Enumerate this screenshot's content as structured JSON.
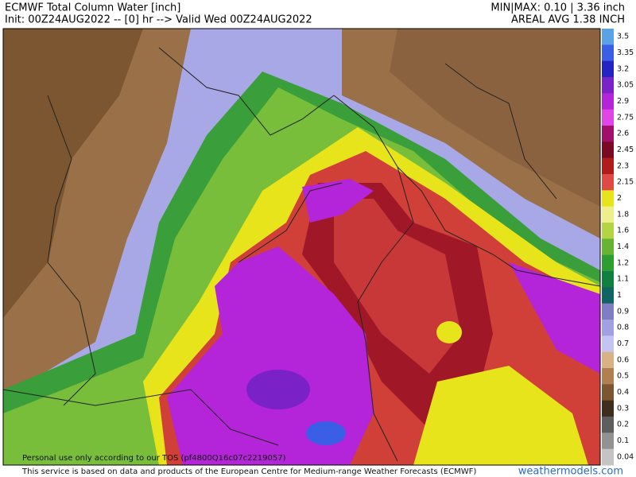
{
  "header": {
    "title": "ECMWF Total Column Water [inch]",
    "init": "Init: 00Z24AUG2022 -- [0] hr --> Valid Wed 00Z24AUG2022",
    "minmax": "MIN|MAX: 0.10 | 3.36 inch",
    "areal_avg": "AREAL AVG 1.38 INCH"
  },
  "colorbar": {
    "items": [
      {
        "label": "3.5",
        "color": "#5aa2e6"
      },
      {
        "label": "3.35",
        "color": "#3a5ee6"
      },
      {
        "label": "3.2",
        "color": "#2424c4"
      },
      {
        "label": "3.05",
        "color": "#7a22c8"
      },
      {
        "label": "2.9",
        "color": "#b424d8"
      },
      {
        "label": "2.75",
        "color": "#e046e6"
      },
      {
        "label": "2.6",
        "color": "#a0106a"
      },
      {
        "label": "2.45",
        "color": "#7a0a24"
      },
      {
        "label": "2.3",
        "color": "#b01c1c"
      },
      {
        "label": "2.15",
        "color": "#e04a46"
      },
      {
        "label": "2",
        "color": "#e8e41c"
      },
      {
        "label": "1.8",
        "color": "#eeee8a"
      },
      {
        "label": "1.6",
        "color": "#b4d444"
      },
      {
        "label": "1.4",
        "color": "#66b432"
      },
      {
        "label": "1.2",
        "color": "#2e9e34"
      },
      {
        "label": "1.1",
        "color": "#108040"
      },
      {
        "label": "1",
        "color": "#106464"
      },
      {
        "label": "0.9",
        "color": "#7e7ec4"
      },
      {
        "label": "0.8",
        "color": "#a0a0e2"
      },
      {
        "label": "0.7",
        "color": "#c4c4f2"
      },
      {
        "label": "0.6",
        "color": "#d8b284"
      },
      {
        "label": "0.5",
        "color": "#b08050"
      },
      {
        "label": "0.4",
        "color": "#7c5630"
      },
      {
        "label": "0.3",
        "color": "#3e2e20"
      },
      {
        "label": "0.2",
        "color": "#5e5e5e"
      },
      {
        "label": "0.1",
        "color": "#929292"
      },
      {
        "label": "0.04",
        "color": "#c4c4c4"
      }
    ]
  },
  "watermark": "Personal use only according to our TOS (pf4800Q16c07c2219057)",
  "footer": {
    "credit": "This service is based on data and products of the European Centre for Medium-range Weather Forecasts (ECMWF)",
    "site": "weathermodels.com"
  }
}
